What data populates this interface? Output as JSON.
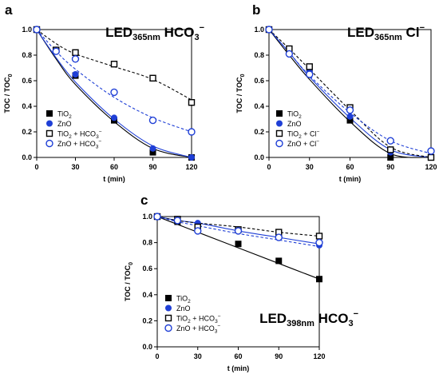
{
  "chart_data": [
    {
      "type": "scatter",
      "panel": "a",
      "title": "LED",
      "title_sub": "365nm",
      "title_rest": " HCO",
      "title_ion_sub": "3",
      "title_ion_sup": "−",
      "xlabel": "t (min)",
      "ylabel": "TOC / TOC",
      "ylabel_sub": "0",
      "xlim": [
        0,
        120
      ],
      "ylim": [
        0,
        1.0
      ],
      "xticks": [
        "0",
        "30",
        "60",
        "90",
        "120"
      ],
      "yticks": [
        "0.0",
        "0.2",
        "0.4",
        "0.6",
        "0.8",
        "1.0"
      ],
      "legend_position": "bottom-left",
      "series": [
        {
          "name": "TiO",
          "name_sub": "2",
          "name_rest": "",
          "marker": "square-filled",
          "color": "#000000",
          "dashed": false,
          "x": [
            0,
            15,
            30,
            60,
            90,
            120
          ],
          "y": [
            1.0,
            0.84,
            0.64,
            0.29,
            0.04,
            0.0
          ],
          "fit": [
            1.0,
            0.77,
            0.57,
            0.28,
            0.07,
            0.0
          ]
        },
        {
          "name": "ZnO",
          "name_sub": "",
          "name_rest": "",
          "marker": "circle-filled",
          "color": "#1f3fd6",
          "dashed": false,
          "x": [
            0,
            15,
            30,
            60,
            90,
            120
          ],
          "y": [
            1.0,
            0.84,
            0.65,
            0.31,
            0.07,
            0.0
          ],
          "fit": [
            1.0,
            0.78,
            0.59,
            0.3,
            0.09,
            0.0
          ]
        },
        {
          "name": "TiO",
          "name_sub": "2",
          "name_rest": " + HCO",
          "name_ion_sub": "3",
          "name_ion_sup": "−",
          "marker": "square-open",
          "color": "#000000",
          "dashed": true,
          "x": [
            0,
            15,
            30,
            60,
            90,
            120
          ],
          "y": [
            1.0,
            0.84,
            0.82,
            0.73,
            0.62,
            0.43
          ],
          "fit": [
            1.0,
            0.89,
            0.81,
            0.71,
            0.61,
            0.45
          ]
        },
        {
          "name": "ZnO",
          "name_sub": "",
          "name_rest": " + HCO",
          "name_ion_sub": "3",
          "name_ion_sup": "−",
          "marker": "circle-open",
          "color": "#1f3fd6",
          "dashed": true,
          "x": [
            0,
            15,
            30,
            60,
            90,
            120
          ],
          "y": [
            1.0,
            0.83,
            0.77,
            0.51,
            0.29,
            0.2
          ],
          "fit": [
            1.0,
            0.83,
            0.69,
            0.47,
            0.31,
            0.2
          ]
        }
      ]
    },
    {
      "type": "scatter",
      "panel": "b",
      "title": "LED",
      "title_sub": "365nm",
      "title_rest": " Cl",
      "title_ion_sub": "",
      "title_ion_sup": "−",
      "xlabel": "t (min)",
      "ylabel": "TOC / TOC",
      "ylabel_sub": "0",
      "xlim": [
        0,
        120
      ],
      "ylim": [
        0,
        1.0
      ],
      "xticks": [
        "0",
        "30",
        "60",
        "90",
        "120"
      ],
      "yticks": [
        "0.0",
        "0.2",
        "0.4",
        "0.6",
        "0.8",
        "1.0"
      ],
      "legend_position": "bottom-left",
      "series": [
        {
          "name": "TiO",
          "name_sub": "2",
          "name_rest": "",
          "marker": "square-filled",
          "color": "#000000",
          "dashed": false,
          "x": [
            0,
            15,
            30,
            60,
            90,
            120
          ],
          "y": [
            1.0,
            0.84,
            0.66,
            0.29,
            0.0,
            0.0
          ],
          "fit": [
            1.0,
            0.8,
            0.61,
            0.28,
            0.03,
            0.0
          ]
        },
        {
          "name": "ZnO",
          "name_sub": "",
          "name_rest": "",
          "marker": "circle-filled",
          "color": "#1f3fd6",
          "dashed": false,
          "x": [
            0,
            15,
            30,
            60,
            90,
            120
          ],
          "y": [
            1.0,
            0.82,
            0.67,
            0.32,
            0.04,
            0.0
          ],
          "fit": [
            1.0,
            0.82,
            0.63,
            0.31,
            0.06,
            0.0
          ]
        },
        {
          "name": "TiO",
          "name_sub": "2",
          "name_rest": " + Cl",
          "name_ion_sub": "",
          "name_ion_sup": "−",
          "marker": "square-open",
          "color": "#000000",
          "dashed": true,
          "x": [
            0,
            15,
            30,
            60,
            90,
            120
          ],
          "y": [
            1.0,
            0.85,
            0.71,
            0.39,
            0.06,
            0.0
          ],
          "fit": [
            1.0,
            0.85,
            0.69,
            0.37,
            0.08,
            0.0
          ]
        },
        {
          "name": "ZnO",
          "name_sub": "",
          "name_rest": " + Cl",
          "name_ion_sub": "",
          "name_ion_sup": "−",
          "marker": "circle-open",
          "color": "#1f3fd6",
          "dashed": true,
          "x": [
            0,
            15,
            30,
            60,
            90,
            120
          ],
          "y": [
            1.0,
            0.81,
            0.65,
            0.37,
            0.13,
            0.05
          ],
          "fit": [
            1.0,
            0.82,
            0.64,
            0.35,
            0.13,
            0.03
          ]
        }
      ]
    },
    {
      "type": "scatter",
      "panel": "c",
      "title": "LED",
      "title_sub": "398nm",
      "title_rest": " HCO",
      "title_ion_sub": "3",
      "title_ion_sup": "−",
      "xlabel": "t (min)",
      "ylabel": "TOC / TOC",
      "ylabel_sub": "0",
      "xlim": [
        0,
        120
      ],
      "ylim": [
        0,
        1.0
      ],
      "xticks": [
        "0",
        "30",
        "60",
        "90",
        "120"
      ],
      "yticks": [
        "0.0",
        "0.2",
        "0.4",
        "0.6",
        "0.8",
        "1.0"
      ],
      "legend_position": "bottom-left",
      "series": [
        {
          "name": "TiO",
          "name_sub": "2",
          "name_rest": "",
          "marker": "square-filled",
          "color": "#000000",
          "dashed": false,
          "x": [
            0,
            15,
            30,
            60,
            90,
            120
          ],
          "y": [
            1.0,
            0.96,
            0.93,
            0.79,
            0.66,
            0.52
          ],
          "fit": [
            1.0,
            0.94,
            0.88,
            0.76,
            0.64,
            0.52
          ]
        },
        {
          "name": "ZnO",
          "name_sub": "",
          "name_rest": "",
          "marker": "circle-filled",
          "color": "#1f3fd6",
          "dashed": false,
          "x": [
            0,
            15,
            30,
            60,
            90,
            120
          ],
          "y": [
            1.0,
            0.97,
            0.95,
            0.9,
            0.85,
            0.78
          ],
          "fit": [
            1.0,
            0.97,
            0.95,
            0.89,
            0.84,
            0.79
          ]
        },
        {
          "name": "TiO",
          "name_sub": "2",
          "name_rest": " + HCO",
          "name_ion_sub": "3",
          "name_ion_sup": "−",
          "marker": "square-open",
          "color": "#000000",
          "dashed": true,
          "x": [
            0,
            15,
            30,
            60,
            90,
            120
          ],
          "y": [
            1.0,
            0.98,
            0.92,
            0.9,
            0.88,
            0.85
          ],
          "fit": [
            1.0,
            0.97,
            0.95,
            0.92,
            0.88,
            0.85
          ]
        },
        {
          "name": "ZnO",
          "name_sub": "",
          "name_rest": " + HCO",
          "name_ion_sub": "3",
          "name_ion_sup": "−",
          "marker": "circle-open",
          "color": "#1f3fd6",
          "dashed": true,
          "x": [
            0,
            15,
            30,
            60,
            90,
            120
          ],
          "y": [
            1.0,
            0.97,
            0.89,
            0.89,
            0.84,
            0.8
          ],
          "fit": [
            1.0,
            0.96,
            0.93,
            0.87,
            0.82,
            0.77
          ]
        }
      ]
    }
  ]
}
